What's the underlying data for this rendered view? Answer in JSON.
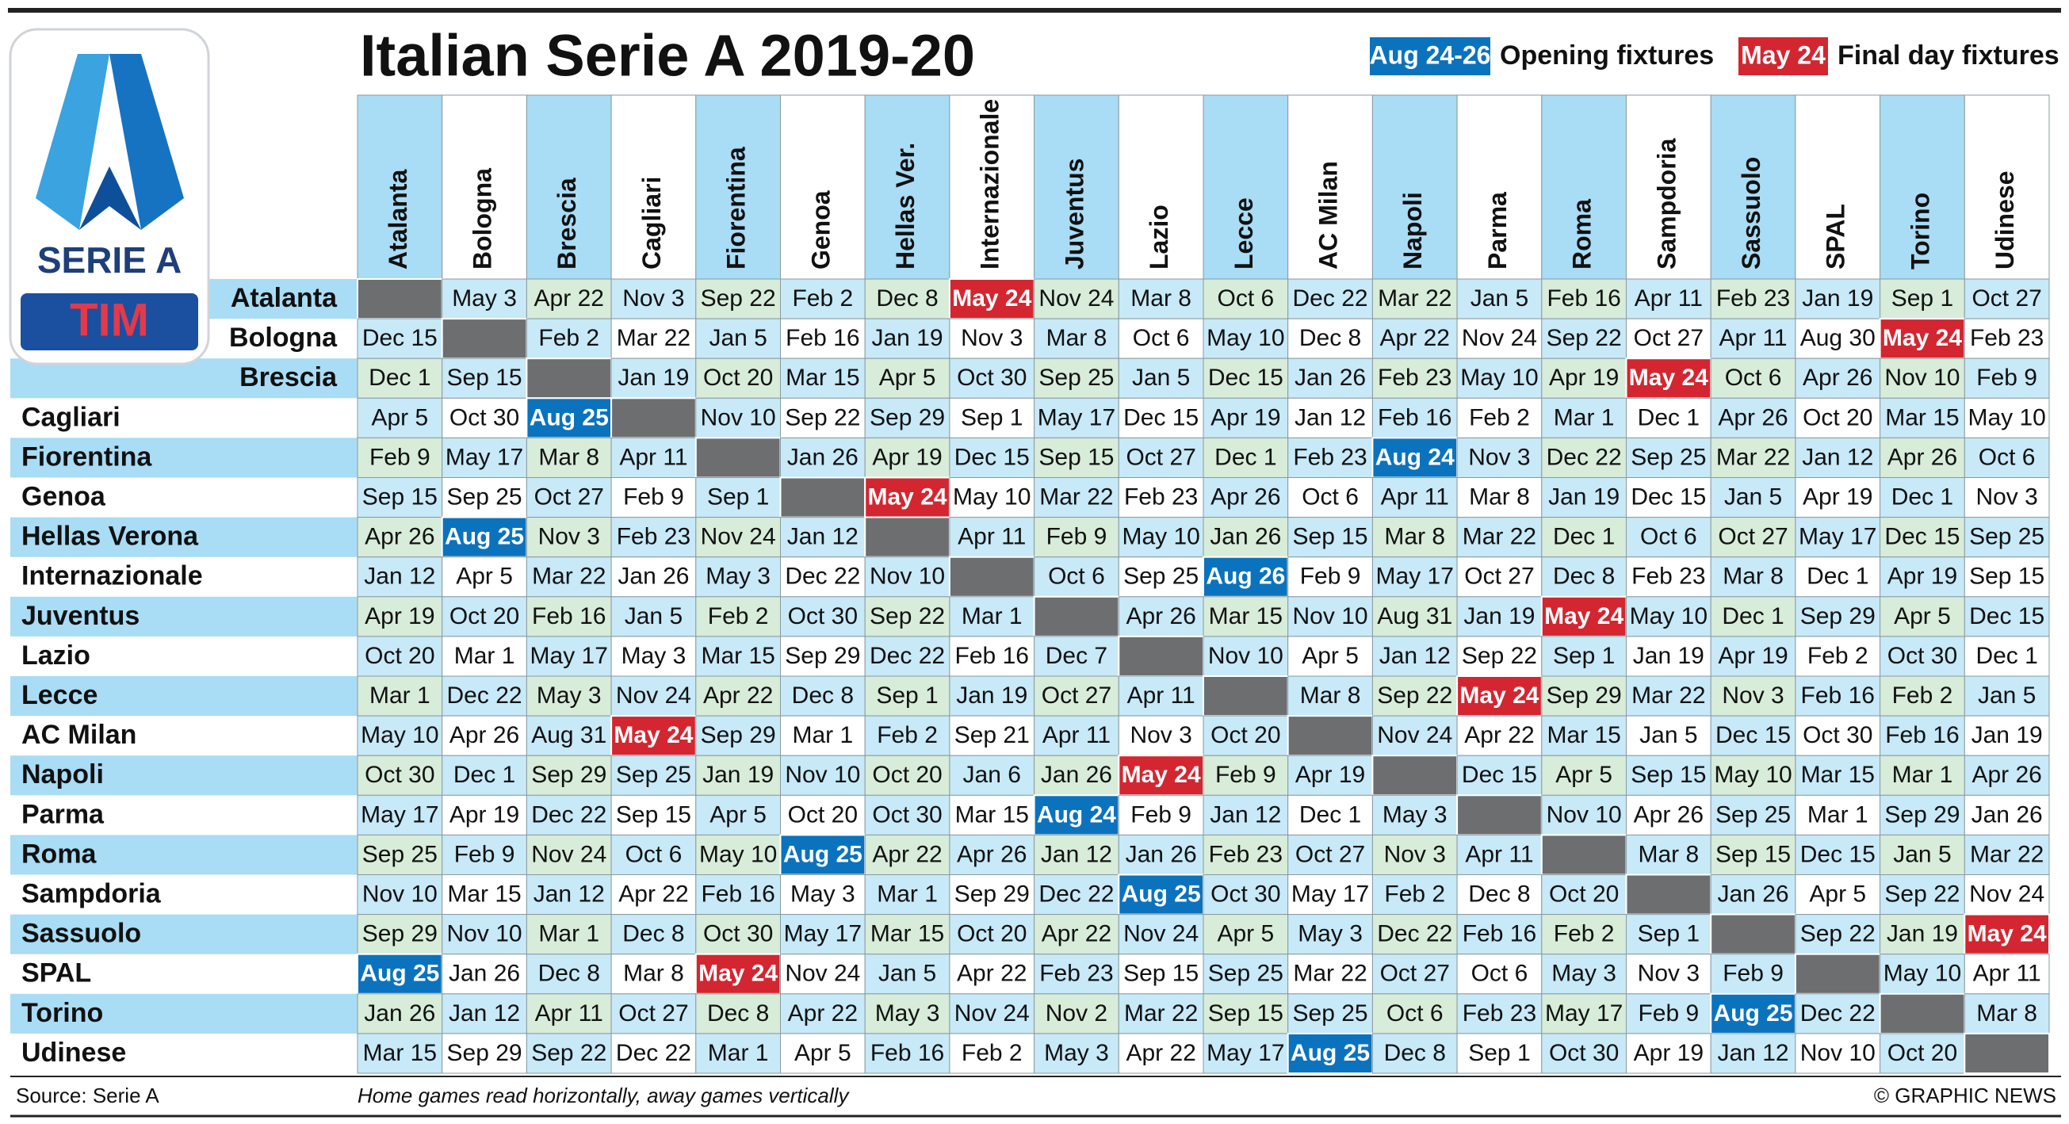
{
  "logo": {
    "title": "SERIE A",
    "sponsor": "TIM"
  },
  "header": {
    "title": "Italian Serie A 2019-20"
  },
  "legend": [
    {
      "label": "Aug 24-26",
      "text": "Opening fixtures",
      "color": "#0b73bd"
    },
    {
      "label": "May 24",
      "text": "Final day fixtures",
      "color": "#d32630"
    }
  ],
  "table": {
    "columns": [
      "Atalanta",
      "Bologna",
      "Brescia",
      "Cagliari",
      "Fiorentina",
      "Genoa",
      "Hellas Ver.",
      "Internazionale",
      "Juventus",
      "Lazio",
      "Lecce",
      "AC Milan",
      "Napoli",
      "Parma",
      "Roma",
      "Sampdoria",
      "Sassuolo",
      "SPAL",
      "Torino",
      "Udinese"
    ],
    "rows": [
      {
        "team": "Atalanta",
        "cells": [
          null,
          "May 3",
          "Apr 22",
          "Nov 3",
          "Sep 22",
          "Feb 2",
          "Dec 8",
          {
            "text": "May 24",
            "color": "#d32630"
          },
          "Nov 24",
          "Mar 8",
          "Oct 6",
          "Dec 22",
          "Mar 22",
          "Jan 5",
          "Feb 16",
          "Apr 11",
          "Feb 23",
          "Jan 19",
          "Sep 1",
          "Oct 27"
        ]
      },
      {
        "team": "Bologna",
        "cells": [
          "Dec 15",
          null,
          "Feb 2",
          "Mar 22",
          "Jan 5",
          "Feb 16",
          "Jan 19",
          "Nov 3",
          "Mar 8",
          "Oct 6",
          "May 10",
          "Dec 8",
          "Apr 22",
          "Nov 24",
          "Sep 22",
          "Oct 27",
          "Apr 11",
          "Aug 30",
          {
            "text": "May 24",
            "color": "#d32630"
          },
          "Feb 23"
        ]
      },
      {
        "team": "Brescia",
        "cells": [
          "Dec 1",
          "Sep 15",
          null,
          "Jan 19",
          "Oct 20",
          "Mar 15",
          "Apr 5",
          "Oct 30",
          "Sep 25",
          "Jan 5",
          "Dec 15",
          "Jan 26",
          "Feb 23",
          "May 10",
          "Apr 19",
          {
            "text": "May 24",
            "color": "#d32630"
          },
          "Oct 6",
          "Apr 26",
          "Nov 10",
          "Feb 9"
        ]
      },
      {
        "team": "Cagliari",
        "cells": [
          "Apr 5",
          "Oct 30",
          {
            "text": "Aug 25",
            "color": "#0b73bd"
          },
          null,
          "Nov 10",
          "Sep 22",
          "Sep 29",
          "Sep 1",
          "May 17",
          "Dec 15",
          "Apr 19",
          "Jan 12",
          "Feb 16",
          "Feb 2",
          "Mar 1",
          "Dec 1",
          "Apr 26",
          "Oct 20",
          "Mar 15",
          "May 10"
        ]
      },
      {
        "team": "Fiorentina",
        "cells": [
          "Feb 9",
          "May 17",
          "Mar 8",
          "Apr 11",
          null,
          "Jan 26",
          "Apr 19",
          "Dec 15",
          "Sep 15",
          "Oct 27",
          "Dec 1",
          "Feb 23",
          {
            "text": "Aug 24",
            "color": "#0b73bd"
          },
          "Nov 3",
          "Dec 22",
          "Sep 25",
          "Mar 22",
          "Jan 12",
          "Apr 26",
          "Oct 6"
        ]
      },
      {
        "team": "Genoa",
        "cells": [
          "Sep 15",
          "Sep 25",
          "Oct 27",
          "Feb 9",
          "Sep 1",
          null,
          {
            "text": "May 24",
            "color": "#d32630"
          },
          "May 10",
          "Mar 22",
          "Feb 23",
          "Apr 26",
          "Oct 6",
          "Apr 11",
          "Mar 8",
          "Jan 19",
          "Dec 15",
          "Jan 5",
          "Apr 19",
          "Dec 1",
          "Nov 3"
        ]
      },
      {
        "team": "Hellas Verona",
        "cells": [
          "Apr 26",
          {
            "text": "Aug 25",
            "color": "#0b73bd"
          },
          "Nov 3",
          "Feb 23",
          "Nov 24",
          "Jan 12",
          null,
          "Apr 11",
          "Feb 9",
          "May 10",
          "Jan 26",
          "Sep 15",
          "Mar 8",
          "Mar 22",
          "Dec 1",
          "Oct 6",
          "Oct 27",
          "May 17",
          "Dec 15",
          "Sep 25"
        ]
      },
      {
        "team": "Internazionale",
        "cells": [
          "Jan 12",
          "Apr 5",
          "Mar 22",
          "Jan 26",
          "May 3",
          "Dec 22",
          "Nov 10",
          null,
          "Oct 6",
          "Sep 25",
          {
            "text": "Aug 26",
            "color": "#0b73bd"
          },
          "Feb 9",
          "May 17",
          "Oct 27",
          "Dec 8",
          "Feb 23",
          "Mar 8",
          "Dec 1",
          "Apr 19",
          "Sep 15"
        ]
      },
      {
        "team": "Juventus",
        "cells": [
          "Apr 19",
          "Oct 20",
          "Feb 16",
          "Jan 5",
          "Feb 2",
          "Oct 30",
          "Sep 22",
          "Mar 1",
          null,
          "Apr 26",
          "Mar 15",
          "Nov 10",
          "Aug 31",
          "Jan 19",
          {
            "text": "May 24",
            "color": "#d32630"
          },
          "May 10",
          "Dec 1",
          "Sep 29",
          "Apr 5",
          "Dec 15"
        ]
      },
      {
        "team": "Lazio",
        "cells": [
          "Oct 20",
          "Mar 1",
          "May 17",
          "May 3",
          "Mar 15",
          "Sep 29",
          "Dec 22",
          "Feb 16",
          "Dec 7",
          null,
          "Nov 10",
          "Apr 5",
          "Jan 12",
          "Sep 22",
          "Sep 1",
          "Jan 19",
          "Apr 19",
          "Feb 2",
          "Oct 30",
          "Dec 1"
        ]
      },
      {
        "team": "Lecce",
        "cells": [
          "Mar 1",
          "Dec 22",
          "May 3",
          "Nov 24",
          "Apr 22",
          "Dec 8",
          "Sep 1",
          "Jan 19",
          "Oct 27",
          "Apr 11",
          null,
          "Mar 8",
          "Sep 22",
          {
            "text": "May 24",
            "color": "#d32630"
          },
          "Sep 29",
          "Mar 22",
          "Nov 3",
          "Feb 16",
          "Feb 2",
          "Jan 5"
        ]
      },
      {
        "team": "AC Milan",
        "cells": [
          "May 10",
          "Apr 26",
          "Aug 31",
          {
            "text": "May 24",
            "color": "#d32630"
          },
          "Sep 29",
          "Mar 1",
          "Feb 2",
          "Sep 21",
          "Apr 11",
          "Nov 3",
          "Oct 20",
          null,
          "Nov 24",
          "Apr 22",
          "Mar 15",
          "Jan 5",
          "Dec 15",
          "Oct 30",
          "Feb 16",
          "Jan 19"
        ]
      },
      {
        "team": "Napoli",
        "cells": [
          "Oct 30",
          "Dec 1",
          "Sep 29",
          "Sep 25",
          "Jan 19",
          "Nov 10",
          "Oct 20",
          "Jan 6",
          "Jan 26",
          {
            "text": "May 24",
            "color": "#d32630"
          },
          "Feb 9",
          "Apr 19",
          null,
          "Dec 15",
          "Apr 5",
          "Sep 15",
          "May 10",
          "Mar 15",
          "Mar 1",
          "Apr 26"
        ]
      },
      {
        "team": "Parma",
        "cells": [
          "May 17",
          "Apr 19",
          "Dec 22",
          "Sep 15",
          "Apr 5",
          "Oct 20",
          "Oct 30",
          "Mar 15",
          {
            "text": "Aug 24",
            "color": "#0b73bd"
          },
          "Feb 9",
          "Jan 12",
          "Dec 1",
          "May 3",
          null,
          "Nov 10",
          "Apr 26",
          "Sep 25",
          "Mar 1",
          "Sep 29",
          "Jan 26"
        ]
      },
      {
        "team": "Roma",
        "cells": [
          "Sep 25",
          "Feb 9",
          "Nov 24",
          "Oct 6",
          "May 10",
          {
            "text": "Aug 25",
            "color": "#0b73bd"
          },
          "Apr 22",
          "Apr 26",
          "Jan 12",
          "Jan 26",
          "Feb 23",
          "Oct 27",
          "Nov 3",
          "Apr 11",
          null,
          "Mar 8",
          "Sep 15",
          "Dec 15",
          "Jan 5",
          "Mar 22"
        ]
      },
      {
        "team": "Sampdoria",
        "cells": [
          "Nov 10",
          "Mar 15",
          "Jan 12",
          "Apr 22",
          "Feb 16",
          "May 3",
          "Mar 1",
          "Sep 29",
          "Dec 22",
          {
            "text": "Aug 25",
            "color": "#0b73bd"
          },
          "Oct 30",
          "May 17",
          "Feb 2",
          "Dec 8",
          "Oct 20",
          null,
          "Jan 26",
          "Apr 5",
          "Sep 22",
          "Nov 24"
        ]
      },
      {
        "team": "Sassuolo",
        "cells": [
          "Sep 29",
          "Nov 10",
          "Mar 1",
          "Dec 8",
          "Oct 30",
          "May 17",
          "Mar 15",
          "Oct 20",
          "Apr 22",
          "Nov 24",
          "Apr 5",
          "May 3",
          "Dec 22",
          "Feb 16",
          "Feb 2",
          "Sep 1",
          null,
          "Sep 22",
          "Jan 19",
          {
            "text": "May 24",
            "color": "#d32630"
          }
        ]
      },
      {
        "team": "SPAL",
        "cells": [
          {
            "text": "Aug 25",
            "color": "#0b73bd"
          },
          "Jan 26",
          "Dec 8",
          "Mar 8",
          {
            "text": "May 24",
            "color": "#d32630"
          },
          "Nov 24",
          "Jan 5",
          "Apr 22",
          "Feb 23",
          "Sep 15",
          "Sep 25",
          "Mar 22",
          "Oct 27",
          "Oct 6",
          "May 3",
          "Nov 3",
          "Feb 9",
          null,
          "May 10",
          "Apr 11"
        ]
      },
      {
        "team": "Torino",
        "cells": [
          "Jan 26",
          "Jan 12",
          "Apr 11",
          "Oct 27",
          "Dec 8",
          "Apr 22",
          "May 3",
          "Nov 24",
          "Nov 2",
          "Mar 22",
          "Sep 15",
          "Sep 25",
          "Oct 6",
          "Feb 23",
          "May 17",
          "Feb 9",
          {
            "text": "Aug 25",
            "color": "#0b73bd"
          },
          "Dec 22",
          null,
          "Mar 8"
        ]
      },
      {
        "team": "Udinese",
        "cells": [
          "Mar 15",
          "Sep 29",
          "Sep 22",
          "Dec 22",
          "Mar 1",
          "Apr 5",
          "Feb 16",
          "Feb 2",
          "May 3",
          "Apr 22",
          "May 17",
          {
            "text": "Aug 25",
            "color": "#0b73bd"
          },
          "Dec 8",
          "Sep 1",
          "Oct 30",
          "Apr 19",
          "Jan 12",
          "Nov 10",
          "Oct 20",
          null
        ]
      }
    ]
  },
  "footer": {
    "source": "Source: Serie A",
    "note": "Home games read horizontally, away games vertically",
    "credit": "© GRAPHIC NEWS"
  }
}
